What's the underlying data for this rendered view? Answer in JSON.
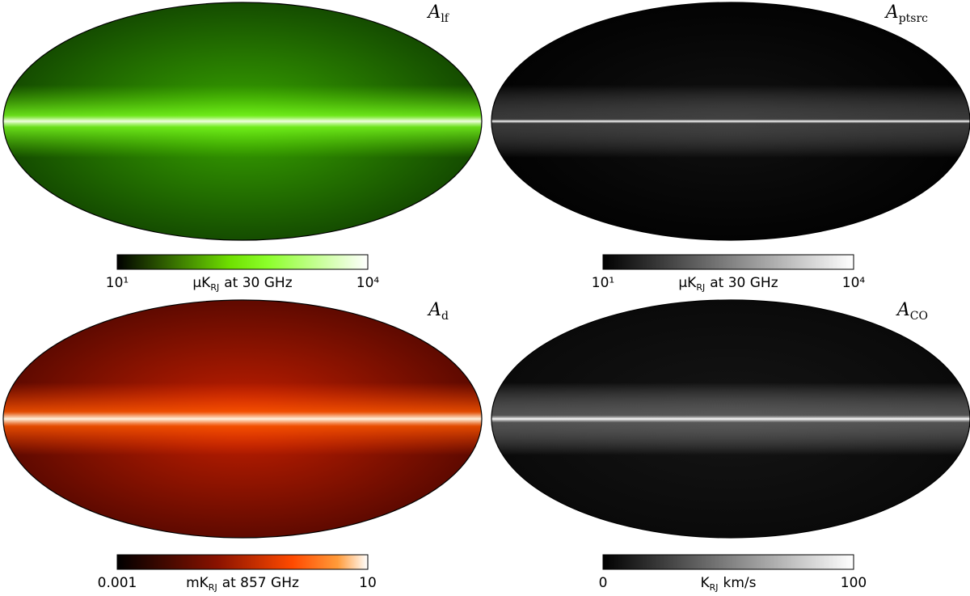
{
  "panels": [
    {
      "title": {
        "main": "A",
        "sub": "lf"
      },
      "colorbar": {
        "min": "10¹",
        "max": "10⁴",
        "unit": {
          "prefix": "μK",
          "sub": "RJ",
          "suffix": "at 30 GHz"
        }
      }
    },
    {
      "title": {
        "main": "A",
        "sub": "ptsrc"
      },
      "colorbar": {
        "min": "10¹",
        "max": "10⁴",
        "unit": {
          "prefix": "μK",
          "sub": "RJ",
          "suffix": "at 30 GHz"
        }
      }
    },
    {
      "title": {
        "main": "A",
        "sub": "d"
      },
      "colorbar": {
        "min": "0.001",
        "max": "10",
        "unit": {
          "prefix": "mK",
          "sub": "RJ",
          "suffix": "at 857 GHz"
        }
      }
    },
    {
      "title": {
        "main": "A",
        "sub": "CO"
      },
      "colorbar": {
        "min": "0",
        "max": "100",
        "unit": {
          "prefix": "K",
          "sub": "RJ",
          "suffix": "km/s"
        }
      }
    }
  ]
}
